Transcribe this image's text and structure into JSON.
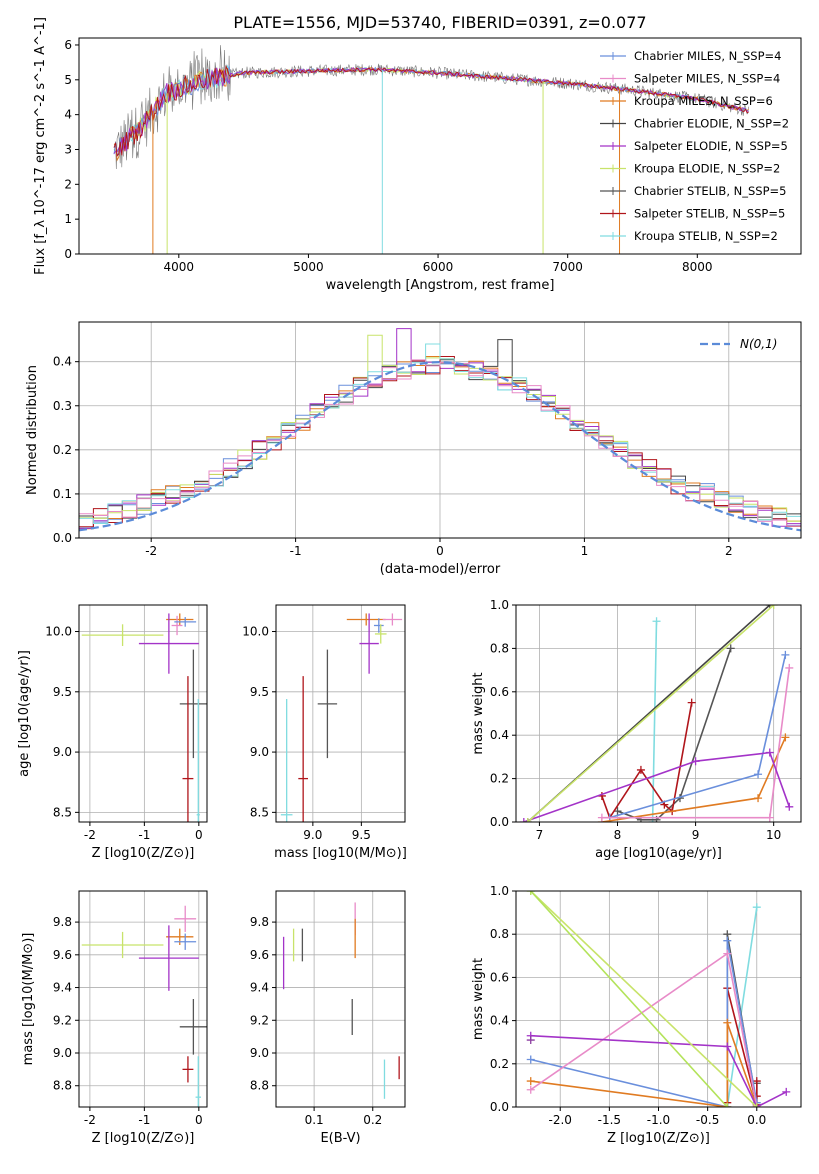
{
  "figure_title": "PLATE=1556, MJD=53740, FIBERID=0391, z=0.077",
  "palette": [
    "#6a8fdc",
    "#e07b22",
    "#444444",
    "#a333c8",
    "#c8e36a",
    "#555555",
    "#b0151b",
    "#80dce0",
    "#e88bc8",
    "#8b3da0",
    "#b3e35a"
  ],
  "chart_data": [
    {
      "id": "spectrum",
      "type": "line",
      "xlabel": "wavelength [Angstrom, rest frame]",
      "ylabel": "Flux [f_λ 10^-17 erg cm^-2 s^-1 A^-1]",
      "xlim": [
        3230,
        8800
      ],
      "ylim": [
        0,
        6.2
      ],
      "xticks": [
        4000,
        5000,
        6000,
        7000,
        8000
      ],
      "yticks": [
        0,
        1,
        2,
        3,
        4,
        5,
        6
      ],
      "grid": false,
      "legend": "upper-right",
      "data_range": [
        3500,
        8400
      ],
      "continuum": [
        [
          3500,
          2.9
        ],
        [
          3700,
          3.6
        ],
        [
          3900,
          4.6
        ],
        [
          4200,
          5.0
        ],
        [
          4500,
          5.2
        ],
        [
          5000,
          5.25
        ],
        [
          5500,
          5.3
        ],
        [
          6000,
          5.2
        ],
        [
          6500,
          5.05
        ],
        [
          7000,
          4.9
        ],
        [
          7500,
          4.7
        ],
        [
          8000,
          4.45
        ],
        [
          8400,
          4.1
        ]
      ],
      "series": [
        {
          "label": "Chabrier MILES, N_SSP=4",
          "color": "#6a8fdc"
        },
        {
          "label": "Salpeter MILES, N_SSP=4",
          "color": "#e88bc8"
        },
        {
          "label": "Kroupa MILES, N_SSP=6",
          "color": "#e07b22"
        },
        {
          "label": "Chabrier ELODIE, N_SSP=2",
          "color": "#444444"
        },
        {
          "label": "Salpeter ELODIE, N_SSP=5",
          "color": "#a333c8"
        },
        {
          "label": "Kroupa ELODIE, N_SSP=2",
          "color": "#c8e36a"
        },
        {
          "label": "Chabrier STELIB, N_SSP=5",
          "color": "#555555"
        },
        {
          "label": "Salpeter STELIB, N_SSP=5",
          "color": "#b0151b"
        },
        {
          "label": "Kroupa STELIB, N_SSP=2",
          "color": "#80dce0"
        }
      ]
    },
    {
      "id": "residuals",
      "type": "histogram",
      "xlabel": "(data-model)/error",
      "ylabel": "Normed distribution",
      "xlim": [
        -2.5,
        2.5
      ],
      "ylim": [
        0,
        0.49
      ],
      "xticks": [
        -2,
        -1,
        0,
        1,
        2
      ],
      "yticks": [
        0.0,
        0.1,
        0.2,
        0.3,
        0.4
      ],
      "grid": true,
      "legend": "upper-right",
      "reference_label": "N(0,1)",
      "reference_color": "#5b8bd8",
      "bin_width": 0.1,
      "series_colors": [
        "#6a8fdc",
        "#e07b22",
        "#444444",
        "#a333c8",
        "#c8e36a",
        "#b0151b",
        "#80dce0",
        "#e88bc8"
      ],
      "highlights": [
        {
          "series": 3,
          "x": -0.25,
          "y": 0.475
        },
        {
          "series": 4,
          "x": -0.45,
          "y": 0.46
        },
        {
          "series": 2,
          "x": 0.45,
          "y": 0.45
        },
        {
          "series": 6,
          "x": -0.05,
          "y": 0.44
        }
      ]
    },
    {
      "id": "age-vs-Z",
      "type": "errorbar",
      "xlabel": "Z [log10(Z/Z⊙)]",
      "ylabel": "age [log10(age/yr)]",
      "xlim": [
        -2.2,
        0.15
      ],
      "ylim": [
        8.42,
        10.22
      ],
      "xticks": [
        -2,
        -1,
        0
      ],
      "yticks": [
        8.5,
        9.0,
        9.5,
        10.0
      ],
      "points": [
        {
          "x": -0.35,
          "y": 10.1,
          "xerr": 0.25,
          "yerr": 0.05,
          "color": "#e07b22"
        },
        {
          "x": -0.4,
          "y": 10.05,
          "xerr": 0.1,
          "yerr": 0.08,
          "color": "#e88bc8"
        },
        {
          "x": -0.25,
          "y": 10.08,
          "xerr": 0.2,
          "yerr": 0.04,
          "color": "#6a8fdc"
        },
        {
          "x": -1.4,
          "y": 9.97,
          "xerr": 0.75,
          "yerr": 0.09,
          "color": "#c8e36a"
        },
        {
          "x": -0.55,
          "y": 9.9,
          "xerr": 0.55,
          "yerr": 0.25,
          "color": "#a333c8"
        },
        {
          "x": -0.1,
          "y": 9.4,
          "xerr": 0.25,
          "yerr": 0.45,
          "color": "#555555"
        },
        {
          "x": -0.2,
          "y": 8.78,
          "xerr": 0.1,
          "yerr": 0.85,
          "color": "#b0151b"
        },
        {
          "x": -0.01,
          "y": 8.48,
          "xerr": 0.03,
          "yerr": 0.96,
          "color": "#80dce0"
        }
      ]
    },
    {
      "id": "age-vs-mass",
      "type": "errorbar",
      "xlabel": "mass [log10(M/M⊙)]",
      "ylabel": "",
      "xlim": [
        8.62,
        9.95
      ],
      "ylim": [
        8.42,
        10.22
      ],
      "xticks": [
        9.0,
        9.5
      ],
      "yticks": [
        8.5,
        9.0,
        9.5,
        10.0
      ],
      "points": [
        {
          "x": 9.55,
          "y": 10.1,
          "xerr": 0.2,
          "yerr": 0.05,
          "color": "#e07b22"
        },
        {
          "x": 9.82,
          "y": 10.1,
          "xerr": 0.1,
          "yerr": 0.05,
          "color": "#e88bc8"
        },
        {
          "x": 9.68,
          "y": 10.05,
          "xerr": 0.05,
          "yerr": 0.06,
          "color": "#6a8fdc"
        },
        {
          "x": 9.7,
          "y": 9.98,
          "xerr": 0.06,
          "yerr": 0.08,
          "color": "#c8e36a"
        },
        {
          "x": 9.58,
          "y": 9.9,
          "xerr": 0.1,
          "yerr": 0.25,
          "color": "#a333c8"
        },
        {
          "x": 9.15,
          "y": 9.4,
          "xerr": 0.1,
          "yerr": 0.45,
          "color": "#555555"
        },
        {
          "x": 8.9,
          "y": 8.78,
          "xerr": 0.05,
          "yerr": 0.85,
          "color": "#b0151b"
        },
        {
          "x": 8.73,
          "y": 8.48,
          "xerr": 0.06,
          "yerr": 0.96,
          "color": "#80dce0"
        }
      ]
    },
    {
      "id": "weight-vs-age",
      "type": "line",
      "xlabel": "age [log10(age/yr)]",
      "ylabel": "mass weight",
      "xlim": [
        6.7,
        10.35
      ],
      "ylim": [
        0,
        1.0
      ],
      "xticks": [
        7,
        8,
        9,
        10
      ],
      "yticks": [
        0.0,
        0.2,
        0.4,
        0.6,
        0.8,
        1.0
      ],
      "grid": true,
      "series": [
        {
          "color": "#80dce0",
          "x": [
            8.45,
            8.5
          ],
          "y": [
            0.0,
            0.925
          ]
        },
        {
          "color": "#555555",
          "x": [
            8.0,
            8.3,
            8.5,
            8.8,
            9.45
          ],
          "y": [
            0.05,
            0.01,
            0.01,
            0.11,
            0.8
          ]
        },
        {
          "color": "#b0151b",
          "x": [
            7.8,
            7.9,
            8.3,
            8.6,
            8.7,
            8.95
          ],
          "y": [
            0.12,
            0.02,
            0.24,
            0.08,
            0.05,
            0.55
          ]
        },
        {
          "color": "#6a8fdc",
          "x": [
            7.9,
            9.8,
            10.15
          ],
          "y": [
            0.02,
            0.22,
            0.77
          ]
        },
        {
          "color": "#e07b22",
          "x": [
            7.8,
            9.8,
            10.15
          ],
          "y": [
            0.0,
            0.11,
            0.39
          ]
        },
        {
          "color": "#e88bc8",
          "x": [
            7.8,
            9.95,
            10.2
          ],
          "y": [
            0.02,
            0.02,
            0.71
          ]
        },
        {
          "color": "#a333c8",
          "x": [
            6.8,
            9.0,
            9.95,
            10.2
          ],
          "y": [
            0.0,
            0.28,
            0.32,
            0.07
          ]
        },
        {
          "color": "#444444",
          "x": [
            6.85,
            9.95
          ],
          "y": [
            0.0,
            1.0
          ]
        },
        {
          "color": "#c8e36a",
          "x": [
            6.85,
            10.0
          ],
          "y": [
            0.0,
            1.0
          ]
        }
      ]
    },
    {
      "id": "mass-vs-Z",
      "type": "errorbar",
      "xlabel": "Z [log10(Z/Z⊙)]",
      "ylabel": "mass [log10(M/M⊙)]",
      "xlim": [
        -2.2,
        0.15
      ],
      "ylim": [
        8.67,
        9.99
      ],
      "xticks": [
        -2,
        -1,
        0
      ],
      "yticks": [
        8.8,
        9.0,
        9.2,
        9.4,
        9.6,
        9.8
      ],
      "points": [
        {
          "x": -0.25,
          "y": 9.82,
          "xerr": 0.2,
          "yerr": 0.08,
          "color": "#e88bc8"
        },
        {
          "x": -0.35,
          "y": 9.71,
          "xerr": 0.25,
          "yerr": 0.05,
          "color": "#e07b22"
        },
        {
          "x": -0.25,
          "y": 9.68,
          "xerr": 0.2,
          "yerr": 0.05,
          "color": "#6a8fdc"
        },
        {
          "x": -1.4,
          "y": 9.66,
          "xerr": 0.75,
          "yerr": 0.08,
          "color": "#c8e36a"
        },
        {
          "x": -0.55,
          "y": 9.58,
          "xerr": 0.55,
          "yerr": 0.2,
          "color": "#a333c8"
        },
        {
          "x": -0.1,
          "y": 9.16,
          "xerr": 0.25,
          "yerr": 0.17,
          "color": "#555555"
        },
        {
          "x": -0.2,
          "y": 8.9,
          "xerr": 0.1,
          "yerr": 0.08,
          "color": "#b0151b"
        },
        {
          "x": -0.01,
          "y": 8.73,
          "xerr": 0.05,
          "yerr": 0.25,
          "color": "#80dce0"
        }
      ]
    },
    {
      "id": "mass-vs-EBV",
      "type": "errorbar",
      "xlabel": "E(B-V)",
      "ylabel": "",
      "xlim": [
        0.035,
        0.255
      ],
      "ylim": [
        8.67,
        9.99
      ],
      "xticks": [
        0.1,
        0.2
      ],
      "yticks": [
        8.8,
        9.0,
        9.2,
        9.4,
        9.6,
        9.8
      ],
      "points": [
        {
          "x": 0.17,
          "y": 9.82,
          "yerr": 0.1,
          "color": "#e88bc8"
        },
        {
          "x": 0.17,
          "y": 9.7,
          "yerr": 0.12,
          "color": "#e07b22"
        },
        {
          "x": 0.065,
          "y": 9.66,
          "yerr": 0.1,
          "color": "#c8e36a"
        },
        {
          "x": 0.08,
          "y": 9.66,
          "yerr": 0.1,
          "color": "#555555"
        },
        {
          "x": 0.048,
          "y": 9.55,
          "yerr": 0.16,
          "color": "#a333c8"
        },
        {
          "x": 0.165,
          "y": 9.22,
          "yerr": 0.11,
          "color": "#555555"
        },
        {
          "x": 0.245,
          "y": 8.91,
          "yerr": 0.07,
          "color": "#b0151b"
        },
        {
          "x": 0.22,
          "y": 8.84,
          "yerr": 0.12,
          "color": "#80dce0"
        }
      ]
    },
    {
      "id": "weight-vs-Z",
      "type": "line",
      "xlabel": "Z [log10(Z/Z⊙)]",
      "ylabel": "mass weight",
      "xlim": [
        -2.45,
        0.45
      ],
      "ylim": [
        0,
        1.0
      ],
      "xticks": [
        -2.0,
        -1.5,
        -1.0,
        -0.5,
        0.0
      ],
      "yticks": [
        0.0,
        0.2,
        0.4,
        0.6,
        0.8,
        1.0
      ],
      "grid": true,
      "series": [
        {
          "color": "#80dce0",
          "x": [
            -0.3,
            0.0
          ],
          "y": [
            0.0,
            0.925
          ]
        },
        {
          "color": "#555555",
          "x": [
            -0.3,
            -0.3,
            0.0,
            0.0
          ],
          "y": [
            0.0,
            0.8,
            0.01,
            0.11
          ]
        },
        {
          "color": "#b0151b",
          "x": [
            -0.3,
            -0.3,
            0.0,
            0.0,
            0.0
          ],
          "y": [
            0.02,
            0.55,
            0.01,
            0.12,
            0.05
          ]
        },
        {
          "color": "#6a8fdc",
          "x": [
            -2.3,
            -0.3,
            -0.3,
            0.0
          ],
          "y": [
            0.22,
            0.0,
            0.77,
            0.02
          ]
        },
        {
          "color": "#e07b22",
          "x": [
            -2.3,
            -0.3,
            -0.3,
            0.0
          ],
          "y": [
            0.12,
            0.0,
            0.39,
            0.0
          ]
        },
        {
          "color": "#e88bc8",
          "x": [
            -2.3,
            -0.3,
            0.0
          ],
          "y": [
            0.08,
            0.71,
            0.0
          ]
        },
        {
          "color": "#a333c8",
          "x": [
            -2.3,
            -0.3,
            0.0,
            0.3
          ],
          "y": [
            0.33,
            0.28,
            0.0,
            0.07
          ]
        },
        {
          "color": "#8b3da0",
          "x": [
            -2.3
          ],
          "y": [
            0.31
          ]
        },
        {
          "color": "#c8e36a",
          "x": [
            -2.3,
            0.0
          ],
          "y": [
            1.0,
            0.0
          ]
        },
        {
          "color": "#b3e35a",
          "x": [
            -2.3,
            -0.3
          ],
          "y": [
            1.0,
            0.0
          ]
        }
      ]
    }
  ]
}
